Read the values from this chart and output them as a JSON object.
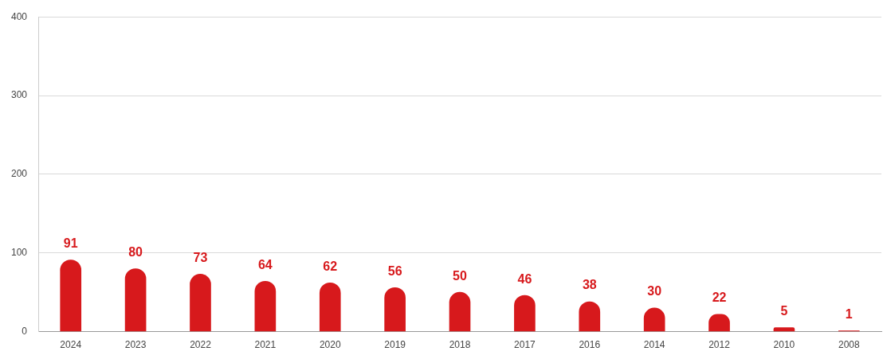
{
  "chart_data": {
    "type": "bar",
    "categories": [
      "2024",
      "2023",
      "2022",
      "2021",
      "2020",
      "2019",
      "2018",
      "2017",
      "2016",
      "2014",
      "2012",
      "2010",
      "2008"
    ],
    "values": [
      91,
      80,
      73,
      64,
      62,
      56,
      50,
      46,
      38,
      30,
      22,
      5,
      1
    ],
    "color": "#d7191c",
    "ylim": [
      0,
      400
    ],
    "yticks": [
      0,
      100,
      200,
      300,
      400
    ],
    "grid": "y",
    "data_labels": true,
    "legend": false
  }
}
